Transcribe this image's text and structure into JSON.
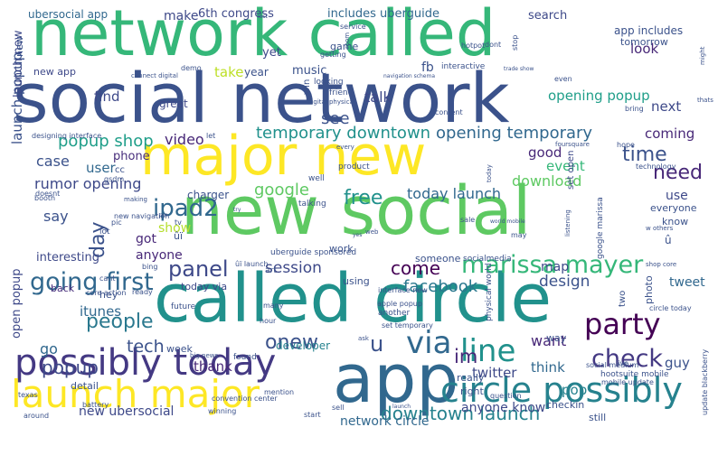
{
  "words": [
    {
      "text": "social network",
      "color": "#3b528b"
    },
    {
      "text": "network called",
      "color": "#35b779"
    },
    {
      "text": "new social",
      "color": "#5ec962"
    },
    {
      "text": "called circle",
      "color": "#21918c"
    },
    {
      "text": "major new",
      "color": "#fde725"
    },
    {
      "text": "app",
      "color": "#31688e"
    },
    {
      "text": "possibly today",
      "color": "#443983"
    },
    {
      "text": "launch major",
      "color": "#fde725"
    },
    {
      "text": "circle possibly",
      "color": "#26828e"
    },
    {
      "text": "ipad2",
      "color": "#31688e"
    },
    {
      "text": "line",
      "color": "#21918c"
    },
    {
      "text": "via",
      "color": "#31688e"
    },
    {
      "text": "party",
      "color": "#440154"
    },
    {
      "text": "marissa mayer",
      "color": "#35b779"
    },
    {
      "text": "going first",
      "color": "#31688e"
    },
    {
      "text": "panel",
      "color": "#3e4989"
    },
    {
      "text": "people",
      "color": "#2a788e"
    },
    {
      "text": "onew",
      "color": "#3b528b"
    },
    {
      "text": "check",
      "color": "#443983"
    },
    {
      "text": "popup",
      "color": "#3e4989"
    },
    {
      "text": "im",
      "color": "#482878"
    },
    {
      "text": "downtown launch",
      "color": "#26828e"
    },
    {
      "text": "free",
      "color": "#21918c"
    },
    {
      "text": "time",
      "color": "#3b528b"
    },
    {
      "text": "need",
      "color": "#482878"
    },
    {
      "text": "day",
      "color": "#3b528b"
    },
    {
      "text": "come",
      "color": "#440154"
    },
    {
      "text": "google",
      "color": "#5ec962"
    },
    {
      "text": "facebook",
      "color": "#2a788e"
    },
    {
      "text": "u",
      "color": "#3b528b"
    },
    {
      "text": "tech",
      "color": "#3b528b"
    },
    {
      "text": "temporary downtown",
      "color": "#21918c"
    },
    {
      "text": "opening temporary",
      "color": "#31688e"
    },
    {
      "text": "popup shop",
      "color": "#1f9e89"
    },
    {
      "text": "rumor opening",
      "color": "#3e4989"
    },
    {
      "text": "video",
      "color": "#482878"
    },
    {
      "text": "session",
      "color": "#3e4989"
    },
    {
      "text": "today launch",
      "color": "#31688e"
    },
    {
      "text": "download",
      "color": "#5ec962"
    },
    {
      "text": "design",
      "color": "#3b528b"
    },
    {
      "text": "want",
      "color": "#482878"
    },
    {
      "text": "see",
      "color": "#3b528b"
    },
    {
      "text": "talk",
      "color": "#3e4989"
    },
    {
      "text": "opening popup",
      "color": "#1f9e89"
    },
    {
      "text": "launch popup",
      "color": "#3b528b"
    },
    {
      "text": "twitter",
      "color": "#3e4989"
    },
    {
      "text": "think",
      "color": "#31688e"
    },
    {
      "text": "pop",
      "color": "#26828e"
    },
    {
      "text": "guy",
      "color": "#3b528b"
    },
    {
      "text": "thank",
      "color": "#482878"
    },
    {
      "text": "event",
      "color": "#35b779"
    },
    {
      "text": "coming",
      "color": "#482878"
    },
    {
      "text": "next",
      "color": "#3e4989"
    },
    {
      "text": "look",
      "color": "#482878"
    },
    {
      "text": "find",
      "color": "#3e4989"
    },
    {
      "text": "take",
      "color": "#bddf26"
    },
    {
      "text": "say",
      "color": "#3b528b"
    },
    {
      "text": "case",
      "color": "#3b528b"
    },
    {
      "text": "user",
      "color": "#31688e"
    },
    {
      "text": "new ubersocial",
      "color": "#3e4989"
    },
    {
      "text": "network circle",
      "color": "#31688e"
    },
    {
      "text": "anyone know",
      "color": "#3e4989"
    },
    {
      "text": "itunes",
      "color": "#31688e"
    },
    {
      "text": "go",
      "color": "#31688e"
    },
    {
      "text": "map",
      "color": "#3e4989"
    },
    {
      "text": "tweet",
      "color": "#31688e"
    },
    {
      "text": "use",
      "color": "#3e4989"
    },
    {
      "text": "good",
      "color": "#482878"
    },
    {
      "text": "show",
      "color": "#b5de2b"
    },
    {
      "text": "got",
      "color": "#482878"
    },
    {
      "text": "anyone",
      "color": "#482878"
    },
    {
      "text": "interesting",
      "color": "#3e4989"
    },
    {
      "text": "phone",
      "color": "#472d7b"
    },
    {
      "text": "charger",
      "color": "#3b528b"
    },
    {
      "text": "developer",
      "color": "#26828e"
    },
    {
      "text": "ubersocial app",
      "color": "#31688e"
    },
    {
      "text": "6th congress",
      "color": "#3e4989"
    },
    {
      "text": "includes uberguide",
      "color": "#31688e"
    },
    {
      "text": "search",
      "color": "#3e4989"
    },
    {
      "text": "app includes",
      "color": "#3b528b"
    },
    {
      "text": "tomorrow",
      "color": "#3b528b"
    },
    {
      "text": "make",
      "color": "#3e4989"
    },
    {
      "text": "yet",
      "color": "#3e4989"
    },
    {
      "text": "game",
      "color": "#3b528b"
    },
    {
      "text": "fb",
      "color": "#3b528b"
    },
    {
      "text": "music",
      "color": "#3b528b"
    },
    {
      "text": "year",
      "color": "#3b528b"
    },
    {
      "text": "new app",
      "color": "#3e4989"
    },
    {
      "text": "great",
      "color": "#3e4989"
    },
    {
      "text": "cc",
      "color": "#3b528b"
    },
    {
      "text": "everyone",
      "color": "#3b528b"
    },
    {
      "text": "know",
      "color": "#3b528b"
    },
    {
      "text": "today via",
      "color": "#3e4989"
    },
    {
      "text": "hey",
      "color": "#3b528b"
    },
    {
      "text": "back",
      "color": "#472d7b"
    },
    {
      "text": "work",
      "color": "#3b528b"
    },
    {
      "text": "someone",
      "color": "#3b528b"
    },
    {
      "text": "using",
      "color": "#3b528b"
    },
    {
      "text": "really",
      "color": "#3b528b"
    },
    {
      "text": "right",
      "color": "#3b528b"
    },
    {
      "text": "way",
      "color": "#3b528b"
    },
    {
      "text": "week",
      "color": "#3b528b"
    },
    {
      "text": "detail",
      "color": "#3b528b"
    },
    {
      "text": "still",
      "color": "#3b528b"
    },
    {
      "text": "checkin",
      "color": "#3b528b"
    },
    {
      "text": "open popup",
      "color": "#3e4989"
    },
    {
      "text": "launch new",
      "color": "#3e4989"
    },
    {
      "text": "new",
      "color": "#3b528b"
    },
    {
      "text": "ûï",
      "color": "#3b528b"
    },
    {
      "text": "û",
      "color": "#3b528b"
    },
    {
      "text": "photo",
      "color": "#3b528b"
    },
    {
      "text": "two",
      "color": "#3b528b"
    },
    {
      "text": "win",
      "color": "#3b528b"
    },
    {
      "text": "set open",
      "color": "#3e4989"
    },
    {
      "text": "look",
      "color": "#3b528b"
    },
    {
      "text": "interactive",
      "color": "#3b528b"
    },
    {
      "text": "friend",
      "color": "#3b528b"
    },
    {
      "text": "looking",
      "color": "#3b528b"
    },
    {
      "text": "product",
      "color": "#3b528b"
    },
    {
      "text": "well",
      "color": "#3b528b"
    },
    {
      "text": "talking",
      "color": "#3b528b"
    },
    {
      "text": "service",
      "color": "#3b528b"
    },
    {
      "text": "getting",
      "color": "#3b528b"
    },
    {
      "text": "content",
      "color": "#3b528b"
    },
    {
      "text": "hotpot",
      "color": "#3b528b"
    },
    {
      "text": "dont",
      "color": "#3b528b"
    },
    {
      "text": "even",
      "color": "#3b528b"
    },
    {
      "text": "stop",
      "color": "#3b528b"
    },
    {
      "text": "connect digital",
      "color": "#3b528b"
    },
    {
      "text": "demo",
      "color": "#3b528b"
    },
    {
      "text": "designing interface",
      "color": "#3b528b"
    },
    {
      "text": "gsdm",
      "color": "#3b528b"
    },
    {
      "text": "booth",
      "color": "#3b528b"
    },
    {
      "text": "doesnt",
      "color": "#3b528b"
    },
    {
      "text": "new navigation",
      "color": "#3b528b"
    },
    {
      "text": "lot",
      "color": "#3b528b"
    },
    {
      "text": "pic",
      "color": "#3b528b"
    },
    {
      "text": "tv",
      "color": "#3b528b"
    },
    {
      "text": "cant",
      "color": "#3b528b"
    },
    {
      "text": "ready",
      "color": "#3b528b"
    },
    {
      "text": "core action",
      "color": "#3b528b"
    },
    {
      "text": "bing",
      "color": "#3b528b"
    },
    {
      "text": "ûï launch",
      "color": "#3b528b"
    },
    {
      "text": "art",
      "color": "#3b528b"
    },
    {
      "text": "uberguide sponsored",
      "color": "#3b528b"
    },
    {
      "text": "interface new",
      "color": "#3b528b"
    },
    {
      "text": "socialmedia",
      "color": "#3b528b"
    },
    {
      "text": "apple popup",
      "color": "#3b528b"
    },
    {
      "text": "another",
      "color": "#3b528b"
    },
    {
      "text": "physical world",
      "color": "#3b528b"
    },
    {
      "text": "set temporary",
      "color": "#3b528b"
    },
    {
      "text": "hour",
      "color": "#3b528b"
    },
    {
      "text": "future",
      "color": "#3b528b"
    },
    {
      "text": "many",
      "color": "#3b528b"
    },
    {
      "text": "ask",
      "color": "#3b528b"
    },
    {
      "text": "found",
      "color": "#3b528b"
    },
    {
      "text": "big news",
      "color": "#3b528b"
    },
    {
      "text": "battery",
      "color": "#3b528b"
    },
    {
      "text": "convention center",
      "color": "#3b528b"
    },
    {
      "text": "mention",
      "color": "#3b528b"
    },
    {
      "text": "texas",
      "color": "#3b528b"
    },
    {
      "text": "winning",
      "color": "#3b528b"
    },
    {
      "text": "start",
      "color": "#3b528b"
    },
    {
      "text": "around",
      "color": "#3b528b"
    },
    {
      "text": "sell",
      "color": "#3b528b"
    },
    {
      "text": "launch",
      "color": "#3b528b"
    },
    {
      "text": "question",
      "color": "#3b528b"
    },
    {
      "text": "social medium",
      "color": "#3b528b"
    },
    {
      "text": "hootsuite mobile",
      "color": "#3b528b"
    },
    {
      "text": "mobile update",
      "color": "#3b528b"
    },
    {
      "text": "live",
      "color": "#3b528b"
    },
    {
      "text": "update blackberry",
      "color": "#3b528b"
    },
    {
      "text": "circle today",
      "color": "#3b528b"
    },
    {
      "text": "shop core",
      "color": "#3b528b"
    },
    {
      "text": "w others",
      "color": "#3b528b"
    },
    {
      "text": "google marissa",
      "color": "#3b528b"
    },
    {
      "text": "technology",
      "color": "#3b528b"
    },
    {
      "text": "foursquare",
      "color": "#3b528b"
    },
    {
      "text": "hope",
      "color": "#3b528b"
    },
    {
      "text": "bring",
      "color": "#3b528b"
    },
    {
      "text": "thats",
      "color": "#3b528b"
    },
    {
      "text": "might",
      "color": "#3b528b"
    },
    {
      "text": "trade show",
      "color": "#3b528b"
    },
    {
      "text": "navigation schema",
      "color": "#3b528b"
    },
    {
      "text": "digital physical",
      "color": "#3b528b"
    },
    {
      "text": "let",
      "color": "#3b528b"
    },
    {
      "text": "every",
      "color": "#3b528b"
    },
    {
      "text": "sale",
      "color": "#3b528b"
    },
    {
      "text": "may",
      "color": "#3b528b"
    },
    {
      "text": "listening",
      "color": "#3b528b"
    },
    {
      "text": "world mobile",
      "color": "#3b528b"
    },
    {
      "text": "making",
      "color": "#3b528b"
    },
    {
      "text": "try",
      "color": "#3b528b"
    },
    {
      "text": "pm",
      "color": "#3b528b"
    },
    {
      "text": "yes",
      "color": "#3b528b"
    },
    {
      "text": "web",
      "color": "#3b528b"
    },
    {
      "text": "today",
      "color": "#3b528b"
    },
    {
      "text": "lost",
      "color": "#3b528b"
    },
    {
      "text": "room",
      "color": "#3b528b"
    }
  ]
}
